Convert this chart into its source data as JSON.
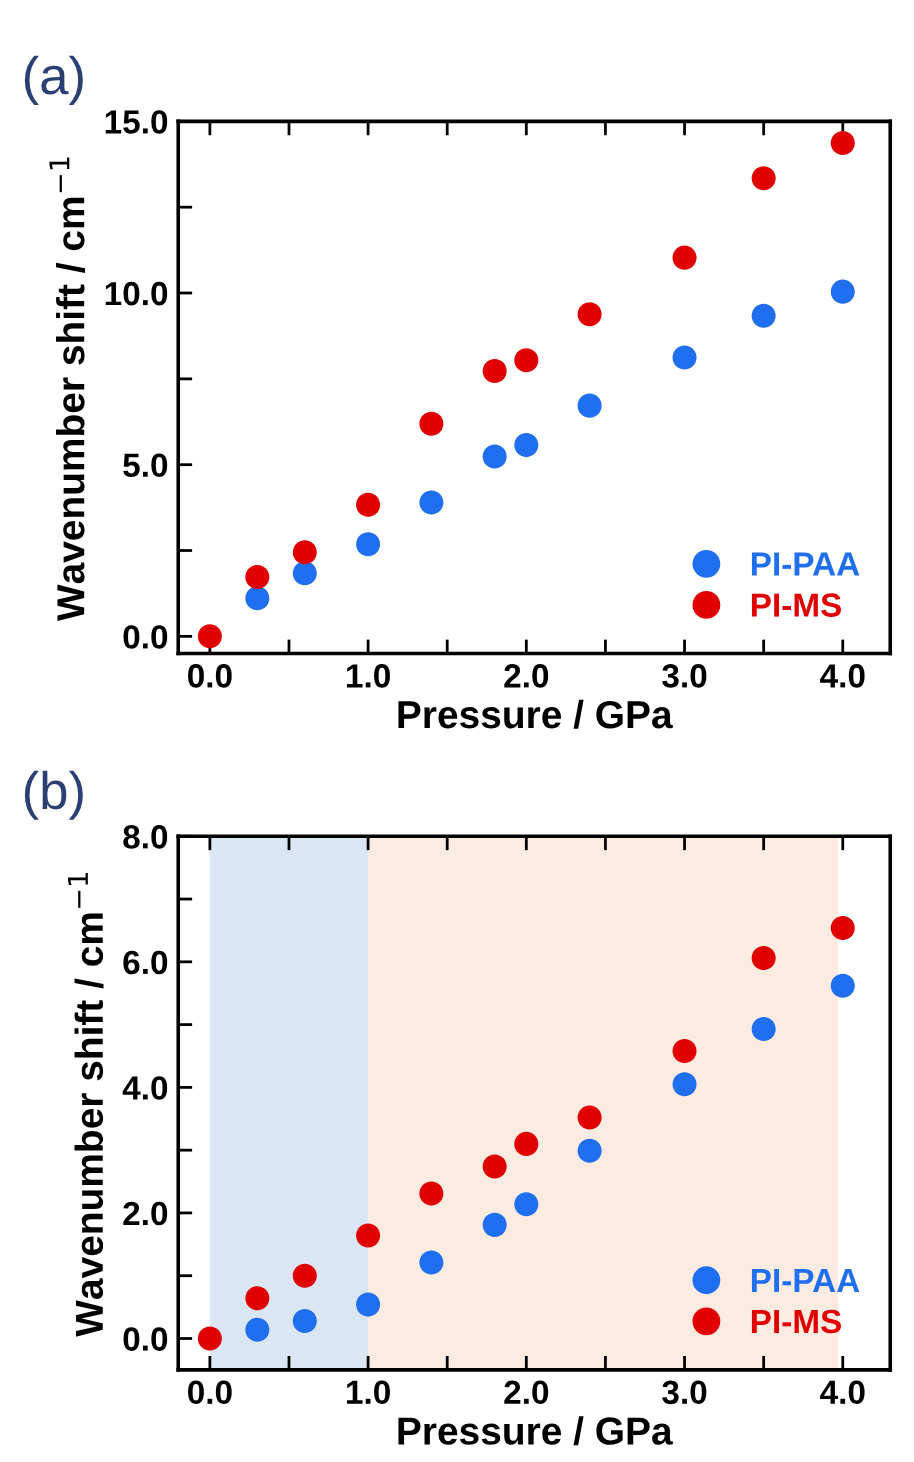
{
  "chart_data": [
    {
      "type": "scatter",
      "title": "(a)",
      "xlabel": "Pressure / GPa",
      "ylabel": "Wavenumber shift / cm$^{−1}$",
      "x": [
        0.0,
        0.3,
        0.6,
        1.0,
        1.4,
        1.8,
        2.0,
        2.4,
        3.0,
        3.5,
        4.0
      ],
      "series": [
        {
          "name": "PI-PAA",
          "color": "#1f6ff0",
          "values": [
            null,
            1.11,
            1.84,
            2.68,
            3.9,
            5.24,
            5.57,
            6.72,
            8.12,
            9.34,
            10.04
          ]
        },
        {
          "name": "PI-MS",
          "color": "#e00000",
          "values": [
            0.0,
            1.73,
            2.45,
            3.83,
            6.19,
            7.73,
            8.04,
            9.38,
            11.03,
            13.34,
            14.37
          ]
        }
      ],
      "xlim": [
        -0.2,
        4.3
      ],
      "ylim": [
        -0.5,
        15.0
      ],
      "xticks": [
        {
          "value": 0.0,
          "label": "0.0"
        },
        {
          "value": 0.5,
          "label": null
        },
        {
          "value": 1.0,
          "label": "1.0"
        },
        {
          "value": 1.5,
          "label": null
        },
        {
          "value": 2.0,
          "label": "2.0"
        },
        {
          "value": 2.5,
          "label": null
        },
        {
          "value": 3.0,
          "label": "3.0"
        },
        {
          "value": 3.5,
          "label": null
        },
        {
          "value": 4.0,
          "label": "4.0"
        }
      ],
      "yticks": [
        {
          "value": 0.0,
          "label": "0.0"
        },
        {
          "value": 2.5,
          "label": null
        },
        {
          "value": 5.0,
          "label": "5.0"
        },
        {
          "value": 7.5,
          "label": null
        },
        {
          "value": 10.0,
          "label": "10.0"
        },
        {
          "value": 12.5,
          "label": null
        },
        {
          "value": 15.0,
          "label": "15.0"
        }
      ],
      "marker": "circle",
      "grid": false,
      "legend": "bottom right"
    },
    {
      "type": "scatter",
      "title": "(b)",
      "xlabel": "Pressure / GPa",
      "ylabel": "Wavenumber shift / cm$^{−1}$",
      "x": [
        0.0,
        0.3,
        0.6,
        1.0,
        1.4,
        1.8,
        2.0,
        2.4,
        3.0,
        3.5,
        4.0
      ],
      "series": [
        {
          "name": "PI-PAA",
          "color": "#1f6ff0",
          "values": [
            null,
            0.14,
            0.28,
            0.54,
            1.21,
            1.81,
            2.14,
            2.99,
            4.05,
            4.93,
            5.62
          ]
        },
        {
          "name": "PI-MS",
          "color": "#e00000",
          "values": [
            0.0,
            0.64,
            1.0,
            1.64,
            2.31,
            2.74,
            3.1,
            3.52,
            4.58,
            6.06,
            6.54
          ]
        }
      ],
      "xlim": [
        -0.2,
        4.3
      ],
      "ylim": [
        -0.5,
        8.0
      ],
      "xticks": [
        {
          "value": 0.0,
          "label": "0.0"
        },
        {
          "value": 0.5,
          "label": null
        },
        {
          "value": 1.0,
          "label": "1.0"
        },
        {
          "value": 1.5,
          "label": null
        },
        {
          "value": 2.0,
          "label": "2.0"
        },
        {
          "value": 2.5,
          "label": null
        },
        {
          "value": 3.0,
          "label": "3.0"
        },
        {
          "value": 3.5,
          "label": null
        },
        {
          "value": 4.0,
          "label": "4.0"
        }
      ],
      "yticks": [
        {
          "value": 0.0,
          "label": "0.0"
        },
        {
          "value": 1.0,
          "label": null
        },
        {
          "value": 2.0,
          "label": "2.0"
        },
        {
          "value": 3.0,
          "label": null
        },
        {
          "value": 4.0,
          "label": "4.0"
        },
        {
          "value": 5.0,
          "label": null
        },
        {
          "value": 6.0,
          "label": "6.0"
        },
        {
          "value": 7.0,
          "label": null
        },
        {
          "value": 8.0,
          "label": "8.0"
        }
      ],
      "bands": [
        {
          "axis": "x",
          "from": 0.0,
          "to": 1.0,
          "color": "#dae6f3"
        },
        {
          "axis": "x",
          "from": 1.0,
          "to": 3.97,
          "color": "#fcebe1"
        }
      ],
      "marker": "circle",
      "grid": false,
      "legend": "bottom right"
    }
  ]
}
